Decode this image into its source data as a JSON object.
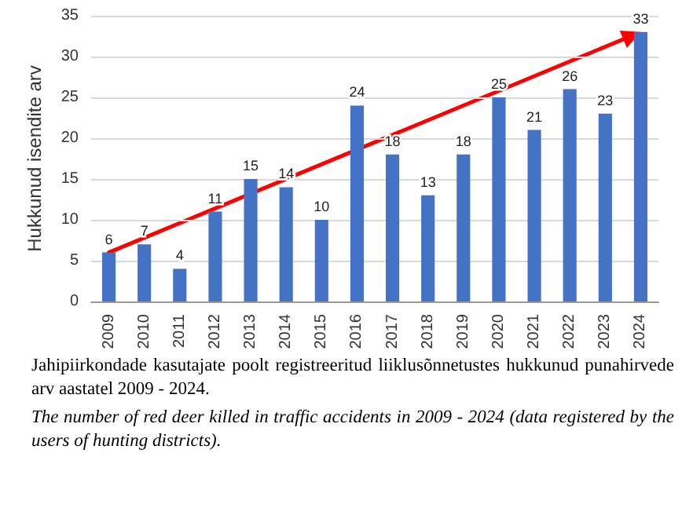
{
  "chart_data": {
    "type": "bar",
    "ylabel": "Hukkunud isendite arv",
    "categories": [
      "2009",
      "2010",
      "2011",
      "2012",
      "2013",
      "2014",
      "2015",
      "2016",
      "2017",
      "2018",
      "2019",
      "2020",
      "2021",
      "2022",
      "2023",
      "2024"
    ],
    "series": [
      {
        "color": "#4472c4",
        "values": [
          6,
          7,
          4,
          11,
          15,
          14,
          10,
          24,
          18,
          13,
          18,
          25,
          21,
          26,
          23,
          33
        ],
        "value_labels": [
          "6",
          "7",
          "4",
          "11",
          "15",
          "14",
          "10",
          "24",
          "18",
          "13",
          "18",
          "25",
          "21",
          "26",
          "23",
          "33"
        ]
      }
    ],
    "ylim": [
      0,
      35
    ],
    "yticks": [
      0,
      5,
      10,
      15,
      20,
      25,
      30,
      35
    ],
    "grid": "y",
    "annotations": [
      "Jahipiirkondade kasutajate poolt registreeritud liiklusõnnetustes hukkunud punahirvede arv aastatel 2009 - 2024.",
      "The number of red deer killed in traffic accidents in 2009 - 2024 (data registered by the users of hunting districts)."
    ]
  }
}
